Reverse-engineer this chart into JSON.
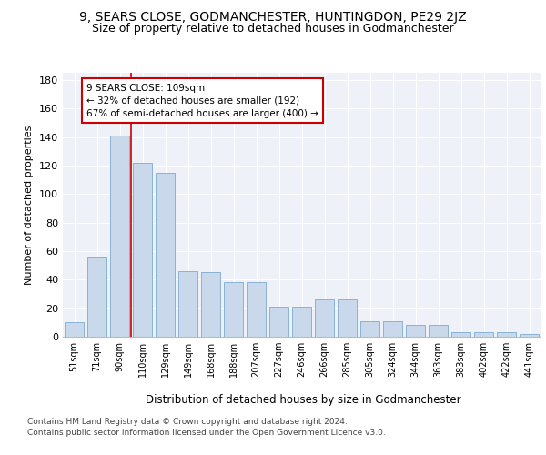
{
  "title": "9, SEARS CLOSE, GODMANCHESTER, HUNTINGDON, PE29 2JZ",
  "subtitle": "Size of property relative to detached houses in Godmanchester",
  "xlabel": "Distribution of detached houses by size in Godmanchester",
  "ylabel": "Number of detached properties",
  "categories": [
    "51sqm",
    "71sqm",
    "90sqm",
    "110sqm",
    "129sqm",
    "149sqm",
    "168sqm",
    "188sqm",
    "207sqm",
    "227sqm",
    "246sqm",
    "266sqm",
    "285sqm",
    "305sqm",
    "324sqm",
    "344sqm",
    "363sqm",
    "383sqm",
    "402sqm",
    "422sqm",
    "441sqm"
  ],
  "values": [
    10,
    56,
    141,
    122,
    115,
    46,
    45,
    38,
    38,
    21,
    21,
    26,
    26,
    11,
    11,
    8,
    8,
    3,
    3,
    3,
    2
  ],
  "bar_color": "#c9d9eb",
  "bar_edge_color": "#7baad0",
  "vline_color": "#cc0000",
  "annotation_text": "9 SEARS CLOSE: 109sqm\n← 32% of detached houses are smaller (192)\n67% of semi-detached houses are larger (400) →",
  "annotation_box_color": "white",
  "annotation_box_edge": "#cc0000",
  "ylim": [
    0,
    185
  ],
  "yticks": [
    0,
    20,
    40,
    60,
    80,
    100,
    120,
    140,
    160,
    180
  ],
  "footer1": "Contains HM Land Registry data © Crown copyright and database right 2024.",
  "footer2": "Contains public sector information licensed under the Open Government Licence v3.0.",
  "bg_color": "#eef2f8",
  "title_fontsize": 10,
  "subtitle_fontsize": 9
}
